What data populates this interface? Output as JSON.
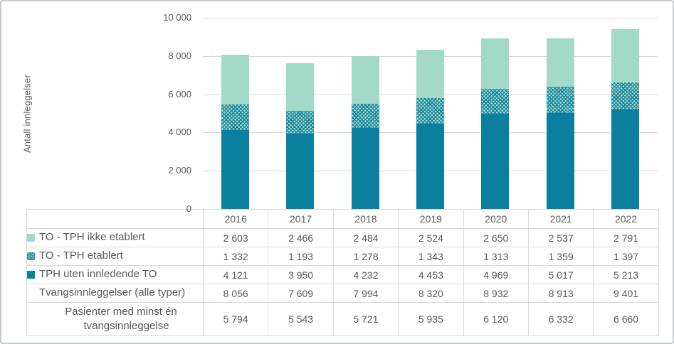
{
  "chart": {
    "y_axis_title": "Antall innleggelser",
    "y_ticks": [
      {
        "value": 0,
        "label": "0"
      },
      {
        "value": 2000,
        "label": "2 000"
      },
      {
        "value": 4000,
        "label": "4 000"
      },
      {
        "value": 6000,
        "label": "6 000"
      },
      {
        "value": 8000,
        "label": "8 000"
      },
      {
        "value": 10000,
        "label": "10 000"
      }
    ]
  },
  "chart_data": {
    "type": "bar",
    "stacked": true,
    "categories": [
      "2016",
      "2017",
      "2018",
      "2019",
      "2020",
      "2021",
      "2022"
    ],
    "series": [
      {
        "name": "TPH uten innledende TO",
        "style": "solid-dark-teal",
        "color": "#0b7f9e",
        "values": [
          4121,
          3950,
          4232,
          4453,
          4969,
          5017,
          5213
        ]
      },
      {
        "name": "TO - TPH etablert",
        "style": "crosshatch-teal",
        "color": "#0b7f9e",
        "pattern_background": "#9fd6c6",
        "values": [
          1332,
          1193,
          1278,
          1343,
          1313,
          1359,
          1397
        ]
      },
      {
        "name": "TO - TPH ikke etablert",
        "style": "solid-light-green",
        "color": "#a3dac7",
        "values": [
          2603,
          2466,
          2484,
          2524,
          2650,
          2537,
          2791
        ]
      }
    ],
    "title": "",
    "xlabel": "",
    "ylabel": "Antall innleggelser",
    "ylim": [
      0,
      10000
    ],
    "grid": true,
    "legend_position": "table-row-labels"
  },
  "table": {
    "year_columns": [
      "2016",
      "2017",
      "2018",
      "2019",
      "2020",
      "2021",
      "2022"
    ],
    "rows": [
      {
        "label": "TO - TPH ikke etablert",
        "legend": "solid-light-green",
        "values": [
          "2 603",
          "2 466",
          "2 484",
          "2 524",
          "2 650",
          "2 537",
          "2 791"
        ]
      },
      {
        "label": "TO - TPH etablert",
        "legend": "crosshatch-teal",
        "values": [
          "1 332",
          "1 193",
          "1 278",
          "1 343",
          "1 313",
          "1 359",
          "1 397"
        ]
      },
      {
        "label": "TPH uten innledende TO",
        "legend": "solid-dark-teal",
        "values": [
          "4 121",
          "3 950",
          "4 232",
          "4 453",
          "4 969",
          "5 017",
          "5 213"
        ]
      },
      {
        "label": "Tvangsinnleggelser (alle typer)",
        "legend": null,
        "values": [
          "8 056",
          "7 609",
          "7 994",
          "8 320",
          "8 932",
          "8 913",
          "9 401"
        ]
      },
      {
        "label": "Pasienter med minst én tvangsinnleggelse",
        "legend": null,
        "values": [
          "5 794",
          "5 543",
          "5 721",
          "5 935",
          "6 120",
          "6 332",
          "6 660"
        ]
      }
    ]
  },
  "colors": {
    "dark_teal": "#0b7f9e",
    "light_green": "#a3dac7",
    "pattern_background": "#9fd6c6",
    "grid_line": "#d9d9d9",
    "table_border": "#d9d9d9",
    "text": "#595959",
    "frame_border": "#c7cacc"
  }
}
